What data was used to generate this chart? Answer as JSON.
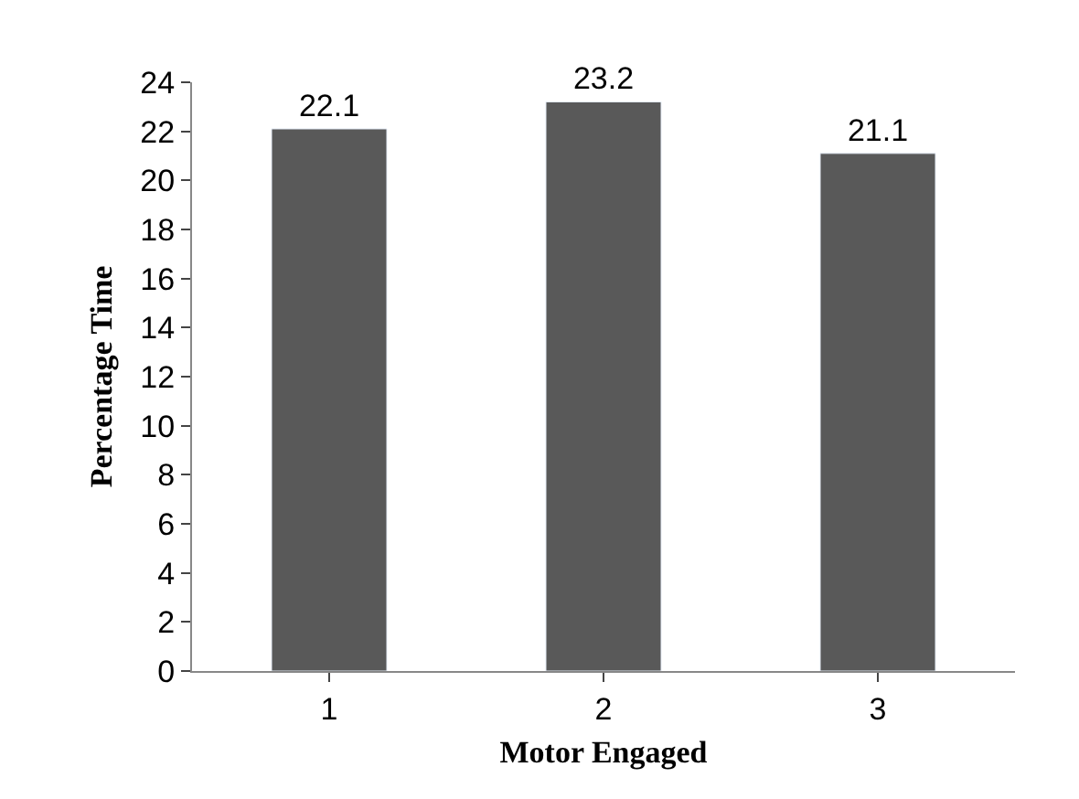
{
  "chart_data": {
    "type": "bar",
    "xlabel": "Motor Engaged",
    "ylabel": "Percentage Time",
    "categories": [
      "1",
      "2",
      "3"
    ],
    "values": [
      22.1,
      23.2,
      21.1
    ],
    "color": "#595959",
    "ylim": [
      0,
      24
    ],
    "yticks": [
      0,
      2,
      4,
      6,
      8,
      10,
      12,
      14,
      16,
      18,
      20,
      22,
      24
    ],
    "data_labels": true
  }
}
